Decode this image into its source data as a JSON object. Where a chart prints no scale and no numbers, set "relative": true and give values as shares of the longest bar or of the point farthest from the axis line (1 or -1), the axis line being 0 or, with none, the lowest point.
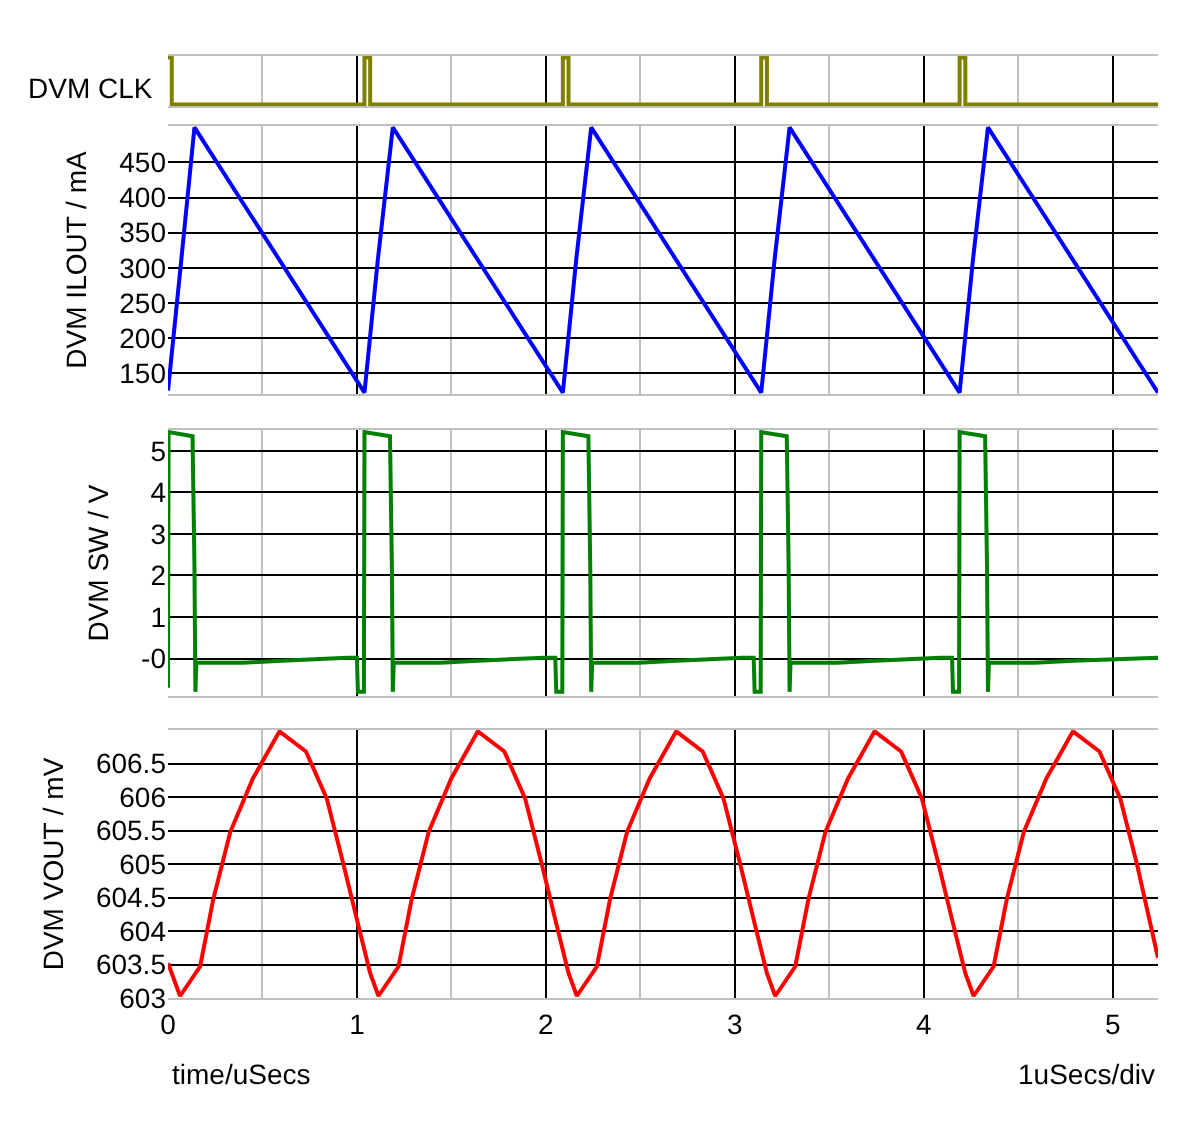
{
  "chart_data": [
    {
      "type": "line",
      "ylabel": "DVM CLK",
      "relative": true,
      "grid": "x",
      "tick_labels": false,
      "xlim": [
        0,
        5.24
      ],
      "xticks": [
        0,
        {
          "value": 0.5,
          "label": null
        },
        1,
        {
          "value": 1.5,
          "label": null
        },
        2,
        {
          "value": 2.5,
          "label": null
        },
        3,
        {
          "value": 3.5,
          "label": null
        },
        4,
        {
          "value": 4.5,
          "label": null
        },
        5
      ],
      "x": [
        0,
        0.02,
        0.02,
        1.04,
        1.04,
        1.07,
        1.07,
        2.09,
        2.09,
        2.12,
        2.12,
        3.14,
        3.14,
        3.17,
        3.17,
        4.19,
        4.19,
        4.22,
        4.22,
        5.24
      ],
      "series": [
        {
          "color": "#808000",
          "values": [
            1,
            1,
            0,
            0,
            1,
            1,
            0,
            0,
            1,
            1,
            0,
            0,
            1,
            1,
            0,
            0,
            1,
            1,
            0,
            0
          ]
        }
      ]
    },
    {
      "type": "line",
      "ylabel": "DVM ILOUT / mA",
      "grid": true,
      "tick_labels": "y",
      "xlim": [
        0,
        5.24
      ],
      "ylim": [
        120,
        502
      ],
      "yticks": [
        150,
        200,
        250,
        300,
        350,
        400,
        450
      ],
      "xticks": [
        0,
        {
          "value": 0.5,
          "label": null
        },
        1,
        {
          "value": 1.5,
          "label": null
        },
        2,
        {
          "value": 2.5,
          "label": null
        },
        3,
        {
          "value": 3.5,
          "label": null
        },
        4,
        {
          "value": 4.5,
          "label": null
        },
        5
      ],
      "x": [
        0,
        0.07,
        0.14,
        1.04,
        1.11,
        1.19,
        2.09,
        2.16,
        2.24,
        3.14,
        3.21,
        3.29,
        4.19,
        4.26,
        4.34,
        5.24
      ],
      "series": [
        {
          "color": "#0000ff",
          "values": [
            125,
            310,
            500,
            122,
            310,
            500,
            122,
            310,
            500,
            122,
            310,
            500,
            122,
            310,
            500,
            122
          ]
        }
      ]
    },
    {
      "type": "line",
      "ylabel": "DVM SW / V",
      "grid": true,
      "tick_labels": "y",
      "xlim": [
        0,
        5.24
      ],
      "ylim": [
        -0.9,
        5.5
      ],
      "yticks": [
        {
          "value": 0,
          "label": "-0"
        },
        1,
        2,
        3,
        4,
        5
      ],
      "xticks": [
        0,
        {
          "value": 0.5,
          "label": null
        },
        1,
        {
          "value": 1.5,
          "label": null
        },
        2,
        {
          "value": 2.5,
          "label": null
        },
        3,
        {
          "value": 3.5,
          "label": null
        },
        4,
        {
          "value": 4.5,
          "label": null
        },
        5
      ],
      "x": [
        0,
        0.003,
        0.13,
        0.14,
        0.145,
        0.15,
        0.4,
        0.6,
        0.95,
        1.0,
        1.005,
        1.037,
        1.04,
        1.175,
        1.185,
        1.19,
        1.195,
        1.44,
        1.64,
        1.99,
        2.05,
        2.055,
        2.087,
        2.09,
        2.225,
        2.235,
        2.24,
        2.245,
        2.49,
        2.69,
        3.04,
        3.1,
        3.105,
        3.137,
        3.14,
        3.275,
        3.285,
        3.29,
        3.295,
        3.54,
        3.74,
        4.09,
        4.15,
        4.155,
        4.187,
        4.19,
        4.325,
        4.335,
        4.34,
        4.345,
        4.59,
        4.79,
        5.24
      ],
      "series": [
        {
          "color": "#008000",
          "values": [
            -0.7,
            5.45,
            5.35,
            2.2,
            -0.8,
            -0.1,
            -0.1,
            -0.05,
            0.02,
            0.02,
            -0.8,
            -0.8,
            5.45,
            5.35,
            2.2,
            -0.8,
            -0.1,
            -0.1,
            -0.05,
            0.02,
            0.02,
            -0.8,
            -0.8,
            5.45,
            5.35,
            2.2,
            -0.8,
            -0.1,
            -0.1,
            -0.05,
            0.02,
            0.02,
            -0.8,
            -0.8,
            5.45,
            5.35,
            2.2,
            -0.8,
            -0.1,
            -0.1,
            -0.05,
            0.02,
            0.02,
            -0.8,
            -0.8,
            5.45,
            5.35,
            2.2,
            -0.8,
            -0.1,
            -0.1,
            -0.05,
            0.02
          ]
        }
      ]
    },
    {
      "type": "line",
      "ylabel": "DVM VOUT / mV",
      "xlabel": "time/uSecs",
      "annotations": [
        "1uSecs/div"
      ],
      "grid": true,
      "xlim": [
        0,
        5.24
      ],
      "ylim": [
        603,
        607
      ],
      "yticks": [
        603,
        603.5,
        604,
        604.5,
        605,
        605.5,
        606,
        606.5
      ],
      "xticks": [
        0,
        {
          "value": 0.5,
          "label": null
        },
        1,
        {
          "value": 1.5,
          "label": null
        },
        2,
        {
          "value": 2.5,
          "label": null
        },
        3,
        {
          "value": 3.5,
          "label": null
        },
        4,
        {
          "value": 4.5,
          "label": null
        },
        5
      ],
      "x": [
        0,
        0.064,
        0.17,
        0.24,
        0.33,
        0.45,
        0.59,
        0.73,
        0.84,
        0.93,
        1.0,
        1.07,
        1.114,
        1.22,
        1.29,
        1.38,
        1.5,
        1.64,
        1.78,
        1.89,
        1.98,
        2.05,
        2.12,
        2.164,
        2.27,
        2.34,
        2.43,
        2.55,
        2.69,
        2.83,
        2.94,
        3.03,
        3.1,
        3.17,
        3.214,
        3.32,
        3.39,
        3.48,
        3.6,
        3.74,
        3.88,
        3.99,
        4.08,
        4.15,
        4.22,
        4.264,
        4.37,
        4.44,
        4.53,
        4.65,
        4.79,
        4.93,
        5.04,
        5.13,
        5.24
      ],
      "series": [
        {
          "color": "#ff0000",
          "values": [
            603.52,
            603.03,
            603.47,
            604.48,
            605.48,
            606.28,
            606.98,
            606.68,
            605.98,
            604.98,
            604.17,
            603.37,
            603.03,
            603.47,
            604.48,
            605.48,
            606.28,
            606.98,
            606.68,
            605.98,
            604.98,
            604.17,
            603.37,
            603.03,
            603.47,
            604.48,
            605.48,
            606.28,
            606.98,
            606.68,
            605.98,
            604.98,
            604.17,
            603.37,
            603.03,
            603.47,
            604.48,
            605.48,
            606.28,
            606.98,
            606.68,
            605.98,
            604.98,
            604.17,
            603.37,
            603.03,
            603.47,
            604.48,
            605.48,
            606.28,
            606.98,
            606.68,
            605.98,
            604.98,
            603.6
          ]
        }
      ]
    }
  ]
}
